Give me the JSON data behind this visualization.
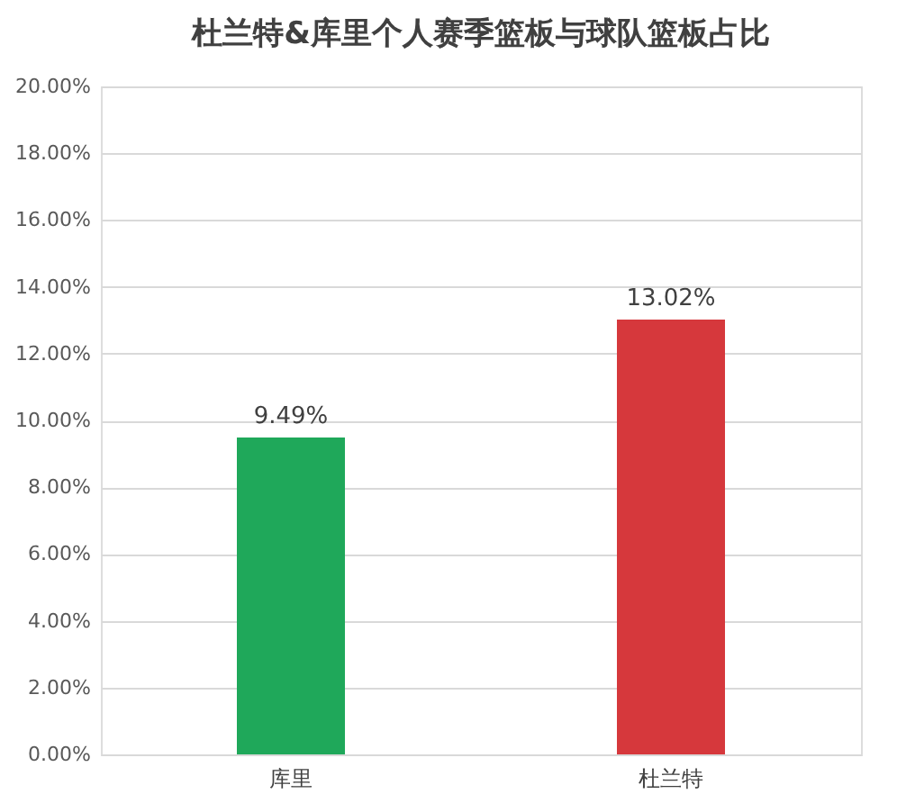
{
  "chart_data": {
    "type": "bar",
    "title": "杜兰特&库里个人赛季篮板与球队篮板占比",
    "categories": [
      "库里",
      "杜兰特"
    ],
    "values": [
      9.49,
      13.02
    ],
    "colors": [
      "#1fa85a",
      "#d6383c"
    ],
    "value_labels": [
      "9.49%",
      "13.02%"
    ],
    "ylim": [
      0,
      20
    ],
    "yticks": [
      {
        "value": 0,
        "label": "0.00%"
      },
      {
        "value": 2,
        "label": "2.00%"
      },
      {
        "value": 4,
        "label": "4.00%"
      },
      {
        "value": 6,
        "label": "6.00%"
      },
      {
        "value": 8,
        "label": "8.00%"
      },
      {
        "value": 10,
        "label": "10.00%"
      },
      {
        "value": 12,
        "label": "12.00%"
      },
      {
        "value": 14,
        "label": "14.00%"
      },
      {
        "value": 16,
        "label": "16.00%"
      },
      {
        "value": 18,
        "label": "18.00%"
      },
      {
        "value": 20,
        "label": "20.00%"
      }
    ],
    "grid": "y",
    "legend": false
  }
}
